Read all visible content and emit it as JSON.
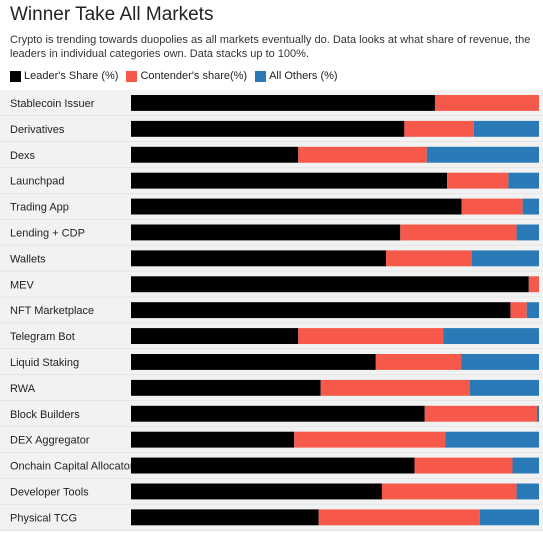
{
  "title": "Winner Take All Markets",
  "subtitle": "Crypto is trending towards duopolies as all markets eventually do. Data looks at what share of revenue, the leaders in individual categories own. Data stacks up to 100%.",
  "colors": {
    "leader": "#000000",
    "contender": "#f6594a",
    "others": "#2a7ab7",
    "row_bg": "#f2f2f2",
    "divider": "#d9d9d9"
  },
  "chart_data": {
    "type": "bar",
    "orientation": "horizontal",
    "stacked": true,
    "xlim": [
      0,
      100
    ],
    "legend": "top-left",
    "categories": [
      "Stablecoin Issuer",
      "Derivatives",
      "Dexs",
      "Launchpad",
      "Trading App",
      "Lending + CDP",
      "Wallets",
      "MEV",
      "NFT Marketplace",
      "Telegram Bot",
      "Liquid Staking",
      "RWA",
      "Block Builders",
      "DEX Aggregator",
      "Onchain Capital Allocator",
      "Developer Tools",
      "Physical TCG"
    ],
    "series": [
      {
        "name": "Leader's Share (%)",
        "color": "#000000",
        "values": [
          74.5,
          67,
          41,
          77.5,
          81,
          66,
          62.5,
          97.5,
          93,
          41,
          60,
          46.5,
          72,
          40,
          69.5,
          61.5,
          46
        ]
      },
      {
        "name": "Contender's share(%)",
        "color": "#f6594a",
        "values": [
          25.5,
          17,
          31.5,
          15,
          15,
          28.5,
          21,
          2.5,
          4,
          35.5,
          21,
          36.5,
          27.5,
          37,
          24,
          33,
          39.5
        ]
      },
      {
        "name": "All Others (%)",
        "color": "#2a7ab7",
        "values": [
          0,
          16,
          27.5,
          7.5,
          4,
          5.5,
          16.5,
          0,
          3,
          23.5,
          19,
          17,
          0.5,
          23,
          6.5,
          5.5,
          14.5
        ]
      }
    ]
  }
}
